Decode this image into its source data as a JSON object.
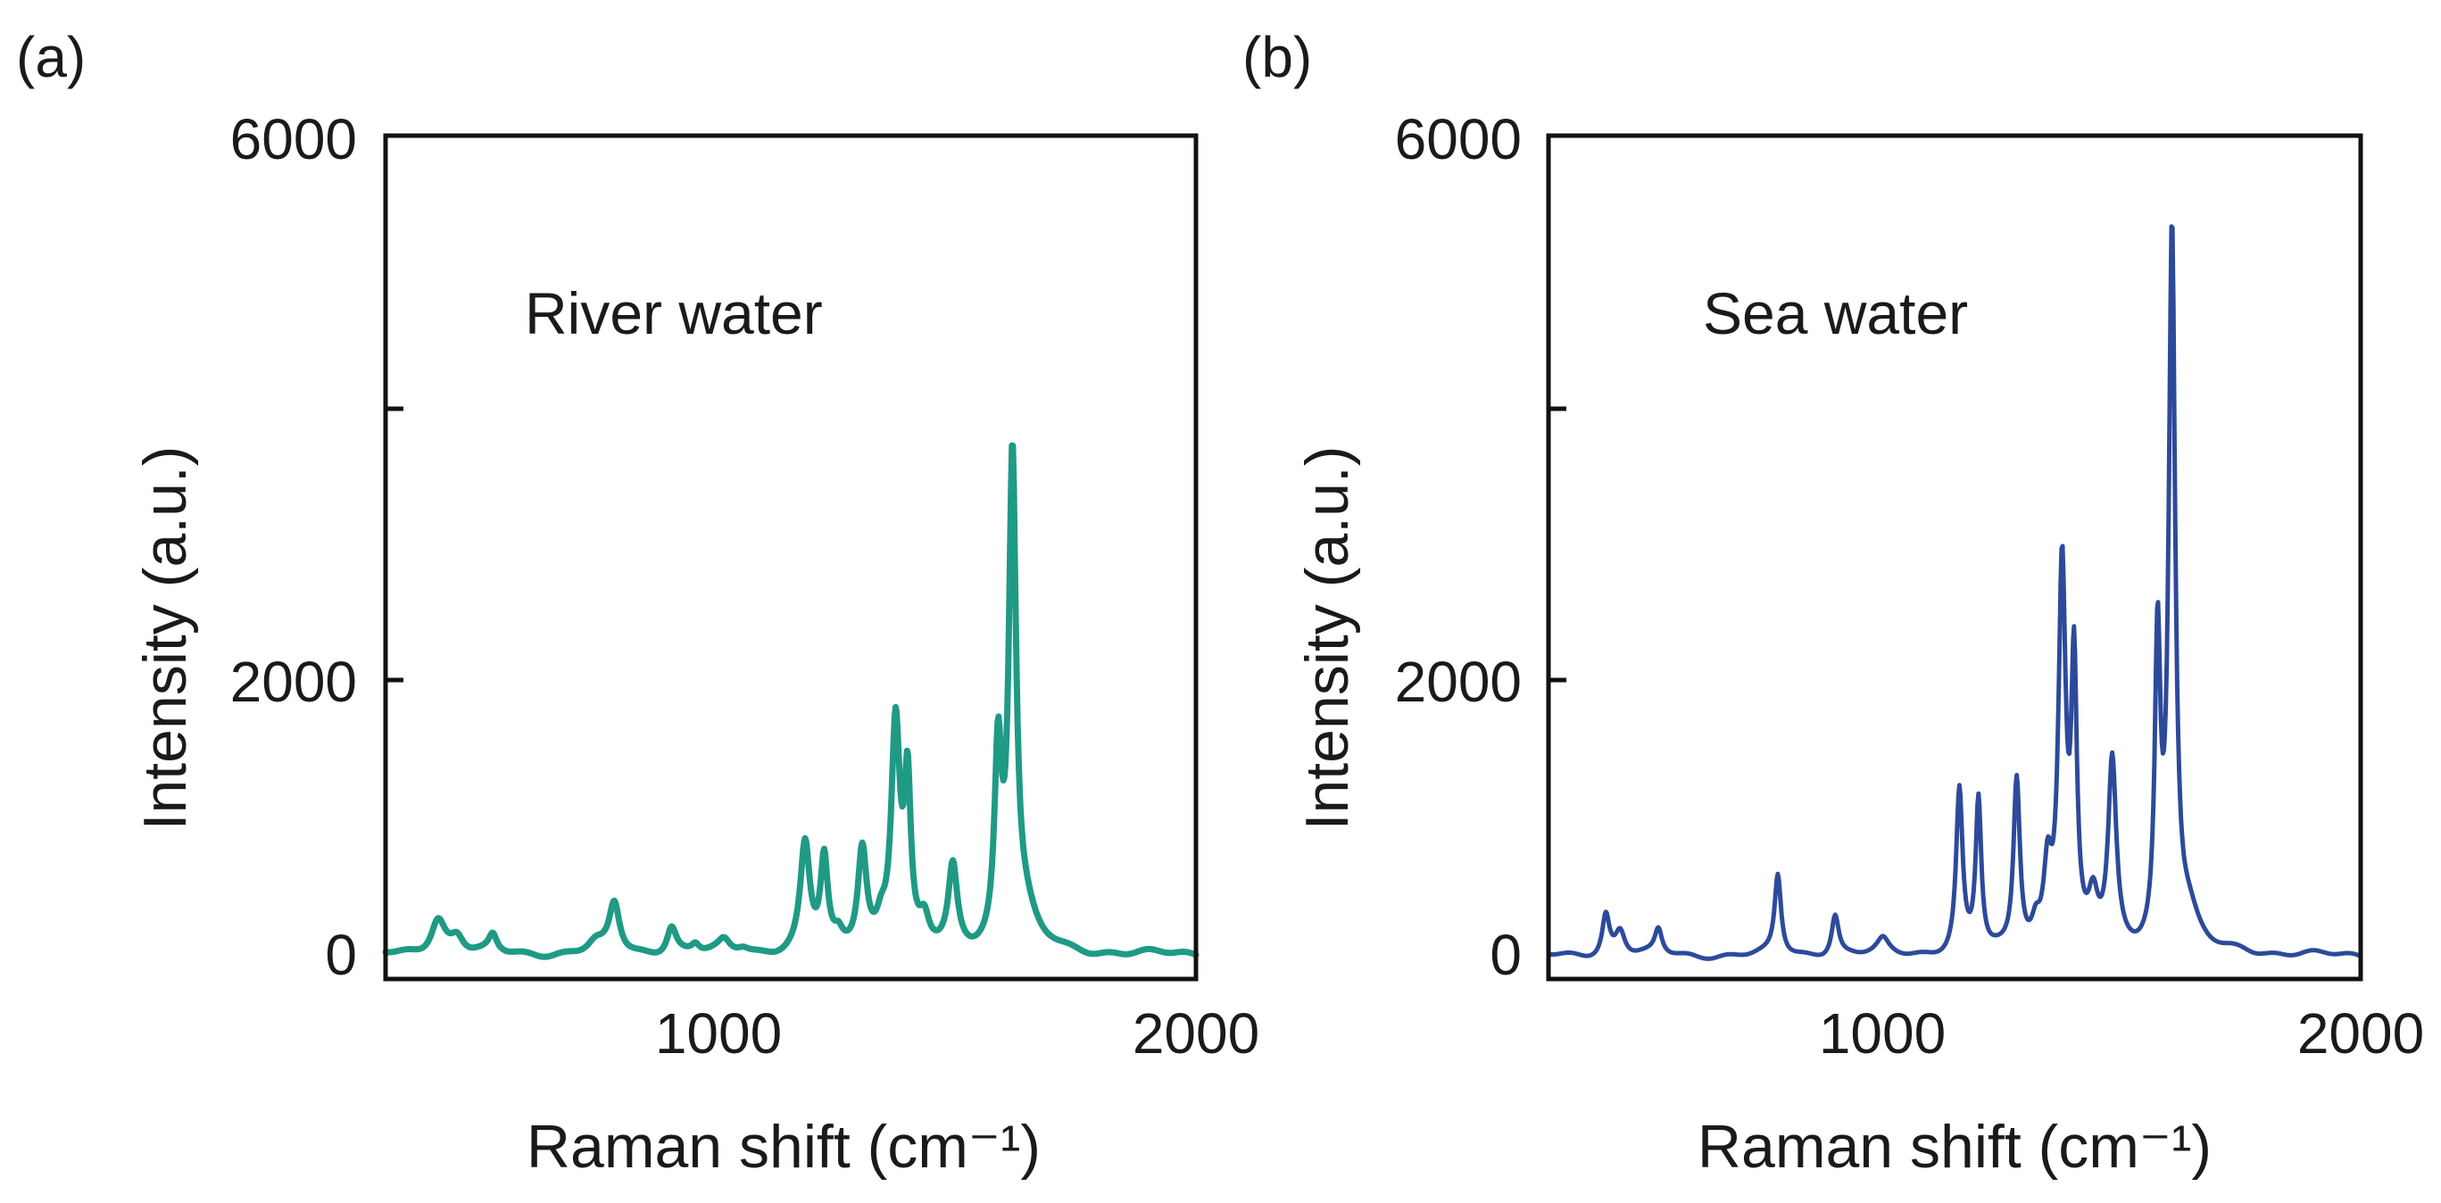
{
  "figure": {
    "panels": [
      {
        "letter": "(a)",
        "label": "River water",
        "color": "#1f9a85"
      },
      {
        "letter": "(b)",
        "label": "Sea water",
        "color": "#2d4a9a"
      }
    ]
  },
  "chart_data": [
    {
      "type": "line",
      "panel": "(a)",
      "annotation": "River water",
      "xlabel": "Raman shift (cm⁻¹)",
      "ylabel": "Intensity (a.u.)",
      "xlim": [
        300,
        2000
      ],
      "ylim": [
        -150,
        6000
      ],
      "x_ticks": [
        1000,
        2000
      ],
      "y_ticks": [
        0,
        2000,
        6000
      ],
      "y_minor_ticks": [
        4000
      ],
      "color": "#1f9a85",
      "series": [
        {
          "name": "River water",
          "baseline": 30,
          "peaks": [
            [
              410,
              260,
              18
            ],
            [
              450,
              120,
              16
            ],
            [
              525,
              120,
              10
            ],
            [
              780,
              360,
              13
            ],
            [
              740,
              70,
              20
            ],
            [
              900,
              200,
              12
            ],
            [
              950,
              60,
              10
            ],
            [
              1010,
              80,
              14
            ],
            [
              1050,
              40,
              15
            ],
            [
              1180,
              780,
              12
            ],
            [
              1220,
              650,
              9
            ],
            [
              1250,
              80,
              10
            ],
            [
              1300,
              740,
              11
            ],
            [
              1340,
              160,
              12
            ],
            [
              1370,
              1650,
              11
            ],
            [
              1395,
              1150,
              8
            ],
            [
              1430,
              190,
              12
            ],
            [
              1490,
              590,
              11
            ],
            [
              1585,
              1380,
              9
            ],
            [
              1615,
              3500,
              9
            ],
            [
              1640,
              250,
              28
            ],
            [
              1700,
              20,
              40
            ]
          ]
        }
      ]
    },
    {
      "type": "line",
      "panel": "(b)",
      "annotation": "Sea water",
      "xlabel": "Raman shift (cm⁻¹)",
      "ylabel": "Intensity (a.u.)",
      "xlim": [
        300,
        2000
      ],
      "ylim": [
        -150,
        6000
      ],
      "x_ticks": [
        1000,
        2000
      ],
      "y_ticks": [
        0,
        2000,
        6000
      ],
      "y_minor_ticks": [
        4000
      ],
      "color": "#2d4a9a",
      "series": [
        {
          "name": "Sea water",
          "baseline": 20,
          "peaks": [
            [
              420,
              300,
              9
            ],
            [
              450,
              180,
              12
            ],
            [
              530,
              180,
              9
            ],
            [
              780,
              580,
              8
            ],
            [
              900,
              300,
              9
            ],
            [
              1000,
              100,
              14
            ],
            [
              1160,
              1180,
              8
            ],
            [
              1200,
              1100,
              7
            ],
            [
              1280,
              1250,
              8
            ],
            [
              1320,
              150,
              10
            ],
            [
              1345,
              550,
              10
            ],
            [
              1375,
              2780,
              9
            ],
            [
              1400,
              1980,
              7
            ],
            [
              1440,
              340,
              12
            ],
            [
              1480,
              1350,
              10
            ],
            [
              1575,
              2200,
              7
            ],
            [
              1605,
              5200,
              8
            ],
            [
              1640,
              230,
              25
            ],
            [
              1750,
              30,
              40
            ]
          ]
        }
      ]
    }
  ]
}
